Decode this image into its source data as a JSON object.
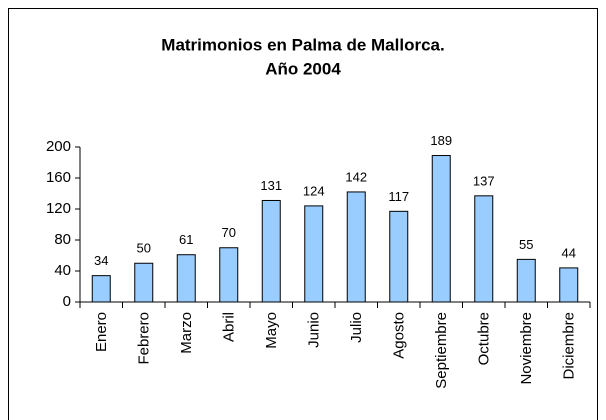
{
  "chart_data": {
    "type": "bar",
    "title": [
      "Matrimonios en Palma de Mallorca.",
      "Año 2004"
    ],
    "categories": [
      "Enero",
      "Febrero",
      "Marzo",
      "Abril",
      "Mayo",
      "Junio",
      "Julio",
      "Agosto",
      "Septiembre",
      "Octubre",
      "Noviembre",
      "Diciembre"
    ],
    "values": [
      34,
      50,
      61,
      70,
      131,
      124,
      142,
      117,
      189,
      137,
      55,
      44
    ],
    "color": "#99ccff",
    "ylim": [
      0,
      200
    ],
    "yticks": [
      0,
      40,
      80,
      120,
      160,
      200
    ],
    "grid": false
  }
}
